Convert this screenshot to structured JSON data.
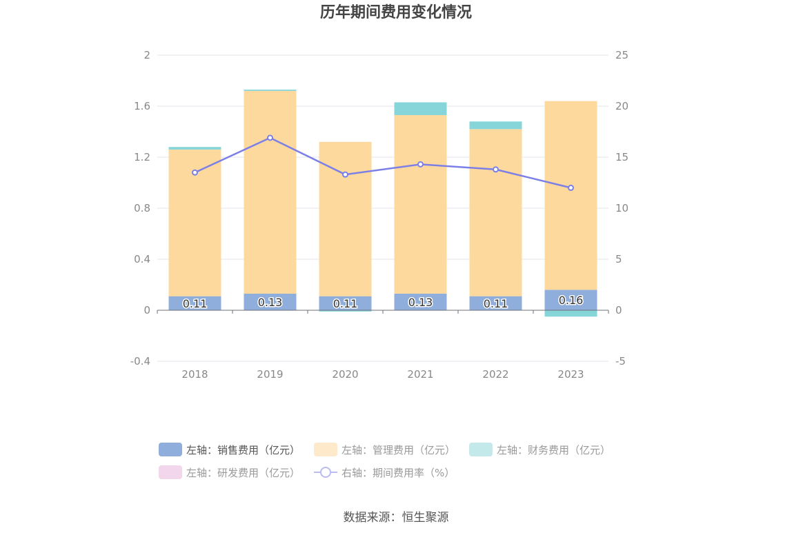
{
  "title": "历年期间费用变化情况",
  "source": "数据来源：恒生聚源",
  "colors": {
    "sales": "#8FAEDC",
    "admin": "#FDD99E",
    "finance": "#86D5D8",
    "rd": "#F2D7EC",
    "rate": "#7B7FE6",
    "grid": "#E4E6EE",
    "axis_text": "#888888"
  },
  "chart_data": {
    "type": "bar",
    "categories": [
      "2018",
      "2019",
      "2020",
      "2021",
      "2022",
      "2023"
    ],
    "stacked": true,
    "left_axis": {
      "ylim": [
        -0.4,
        2
      ],
      "ticks": [
        "2",
        "1.6",
        "1.2",
        "0.8",
        "0.4",
        "0",
        "-0.4"
      ],
      "tick_values": [
        2,
        1.6,
        1.2,
        0.8,
        0.4,
        0,
        -0.4
      ]
    },
    "right_axis": {
      "ylim": [
        -5,
        25
      ],
      "ticks": [
        "25",
        "20",
        "15",
        "10",
        "5",
        "0",
        "-5"
      ],
      "tick_values": [
        25,
        20,
        15,
        10,
        5,
        0,
        -5
      ]
    },
    "series": [
      {
        "name": "左轴：销售费用（亿元）",
        "key": "sales",
        "axis": "left",
        "values": [
          0.11,
          0.13,
          0.11,
          0.13,
          0.11,
          0.16
        ],
        "labels": [
          "0.11",
          "0.13",
          "0.11",
          "0.13",
          "0.11",
          "0.16"
        ]
      },
      {
        "name": "左轴：管理费用（亿元）",
        "key": "admin",
        "axis": "left",
        "values": [
          1.15,
          1.59,
          1.21,
          1.4,
          1.31,
          1.48
        ]
      },
      {
        "name": "左轴：财务费用（亿元）",
        "key": "finance",
        "axis": "left",
        "values": [
          0.02,
          0.01,
          -0.01,
          0.1,
          0.06,
          -0.05
        ]
      },
      {
        "name": "左轴：研发费用（亿元）",
        "key": "rd",
        "axis": "left",
        "values": [
          0,
          0,
          0,
          0,
          0,
          0
        ]
      },
      {
        "name": "右轴：期间费用率（%）",
        "key": "rate",
        "axis": "right",
        "type": "line",
        "values": [
          13.5,
          16.9,
          13.3,
          14.3,
          13.8,
          12.0
        ]
      }
    ],
    "legend_position": "bottom",
    "grid": true
  }
}
